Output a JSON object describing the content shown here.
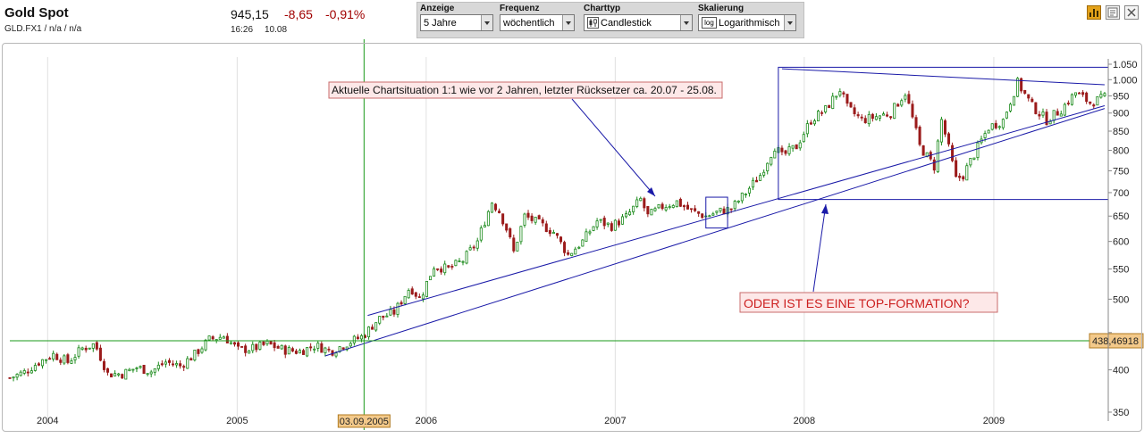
{
  "header": {
    "title": "Gold Spot",
    "subtitle": "GLD.FX1 / n/a / n/a",
    "price": "945,15",
    "change": "-8,65",
    "change_pct": "-0,91%",
    "time": "16:26",
    "date": "10.08",
    "change_color": "#a00000"
  },
  "toolbar": {
    "anzeige": {
      "label": "Anzeige",
      "value": "5 Jahre"
    },
    "frequenz": {
      "label": "Frequenz",
      "value": "wöchentlich"
    },
    "charttyp": {
      "label": "Charttyp",
      "value": "Candlestick"
    },
    "skalierung": {
      "label": "Skalierung",
      "value": "Logarithmisch",
      "icon_text": "log"
    }
  },
  "top_icons": [
    "bar-chart-icon",
    "news-icon",
    "close-icon"
  ],
  "chart_data": {
    "type": "candlestick",
    "frequency": "weekly",
    "scale": "log",
    "ylim": [
      350,
      1050
    ],
    "yticks": [
      350,
      400,
      450,
      500,
      550,
      600,
      650,
      700,
      750,
      800,
      850,
      900,
      950,
      1000,
      1050
    ],
    "ytick_labels": [
      "350",
      "400",
      "",
      "500",
      "550",
      "600",
      "650",
      "700",
      "750",
      "800",
      "850",
      "900",
      "950",
      "1.000",
      "1.050"
    ],
    "xlim": [
      "2003-10-20",
      "2009-08-10"
    ],
    "xticks": [
      {
        "date": "2004-01-01",
        "label": "2004"
      },
      {
        "date": "2005-01-01",
        "label": "2005"
      },
      {
        "date": "2006-01-01",
        "label": "2006"
      },
      {
        "date": "2007-01-01",
        "label": "2007"
      },
      {
        "date": "2008-01-01",
        "label": "2008"
      },
      {
        "date": "2009-01-01",
        "label": "2009"
      }
    ],
    "up_color": "#1a8a1a",
    "down_color": "#9b1b1b",
    "closes": [
      {
        "date": "2003-10-20",
        "close": 390
      },
      {
        "date": "2003-11-17",
        "close": 397
      },
      {
        "date": "2003-12-15",
        "close": 410
      },
      {
        "date": "2004-01-12",
        "close": 420
      },
      {
        "date": "2004-02-09",
        "close": 410
      },
      {
        "date": "2004-03-08",
        "close": 428
      },
      {
        "date": "2004-04-01",
        "close": 434
      },
      {
        "date": "2004-04-26",
        "close": 395
      },
      {
        "date": "2004-05-24",
        "close": 395
      },
      {
        "date": "2004-06-21",
        "close": 403
      },
      {
        "date": "2004-07-19",
        "close": 398
      },
      {
        "date": "2004-08-16",
        "close": 410
      },
      {
        "date": "2004-09-13",
        "close": 405
      },
      {
        "date": "2004-10-11",
        "close": 420
      },
      {
        "date": "2004-11-08",
        "close": 440
      },
      {
        "date": "2004-12-06",
        "close": 445
      },
      {
        "date": "2005-01-03",
        "close": 426
      },
      {
        "date": "2005-02-01",
        "close": 428
      },
      {
        "date": "2005-03-01",
        "close": 434
      },
      {
        "date": "2005-04-01",
        "close": 426
      },
      {
        "date": "2005-05-01",
        "close": 424
      },
      {
        "date": "2005-06-01",
        "close": 432
      },
      {
        "date": "2005-07-01",
        "close": 424
      },
      {
        "date": "2005-08-01",
        "close": 435
      },
      {
        "date": "2005-09-01",
        "close": 445
      },
      {
        "date": "2005-10-01",
        "close": 470
      },
      {
        "date": "2005-11-01",
        "close": 480
      },
      {
        "date": "2005-12-01",
        "close": 520
      },
      {
        "date": "2005-12-20",
        "close": 500
      },
      {
        "date": "2006-01-16",
        "close": 555
      },
      {
        "date": "2006-02-13",
        "close": 550
      },
      {
        "date": "2006-03-13",
        "close": 565
      },
      {
        "date": "2006-04-10",
        "close": 600
      },
      {
        "date": "2006-05-08",
        "close": 680
      },
      {
        "date": "2006-05-22",
        "close": 660
      },
      {
        "date": "2006-06-05",
        "close": 625
      },
      {
        "date": "2006-06-19",
        "close": 580
      },
      {
        "date": "2006-07-10",
        "close": 650
      },
      {
        "date": "2006-08-07",
        "close": 635
      },
      {
        "date": "2006-09-04",
        "close": 618
      },
      {
        "date": "2006-10-02",
        "close": 575
      },
      {
        "date": "2006-10-30",
        "close": 600
      },
      {
        "date": "2006-11-27",
        "close": 640
      },
      {
        "date": "2006-12-25",
        "close": 630
      },
      {
        "date": "2007-01-22",
        "close": 648
      },
      {
        "date": "2007-02-19",
        "close": 685
      },
      {
        "date": "2007-03-05",
        "close": 650
      },
      {
        "date": "2007-04-02",
        "close": 670
      },
      {
        "date": "2007-04-30",
        "close": 680
      },
      {
        "date": "2007-05-28",
        "close": 660
      },
      {
        "date": "2007-06-25",
        "close": 650
      },
      {
        "date": "2007-07-23",
        "close": 660
      },
      {
        "date": "2007-08-13",
        "close": 665
      },
      {
        "date": "2007-09-10",
        "close": 700
      },
      {
        "date": "2007-10-08",
        "close": 740
      },
      {
        "date": "2007-11-05",
        "close": 810
      },
      {
        "date": "2007-11-19",
        "close": 785
      },
      {
        "date": "2007-12-17",
        "close": 810
      },
      {
        "date": "2008-01-14",
        "close": 880
      },
      {
        "date": "2008-02-11",
        "close": 910
      },
      {
        "date": "2008-03-10",
        "close": 970
      },
      {
        "date": "2008-03-24",
        "close": 915
      },
      {
        "date": "2008-04-21",
        "close": 880
      },
      {
        "date": "2008-05-19",
        "close": 890
      },
      {
        "date": "2008-06-16",
        "close": 900
      },
      {
        "date": "2008-07-14",
        "close": 960
      },
      {
        "date": "2008-08-11",
        "close": 810
      },
      {
        "date": "2008-09-08",
        "close": 760
      },
      {
        "date": "2008-09-22",
        "close": 880
      },
      {
        "date": "2008-10-20",
        "close": 730
      },
      {
        "date": "2008-11-03",
        "close": 740
      },
      {
        "date": "2008-11-24",
        "close": 790
      },
      {
        "date": "2008-12-22",
        "close": 860
      },
      {
        "date": "2009-01-19",
        "close": 880
      },
      {
        "date": "2009-02-16",
        "close": 990
      },
      {
        "date": "2009-03-16",
        "close": 920
      },
      {
        "date": "2009-04-13",
        "close": 880
      },
      {
        "date": "2009-05-11",
        "close": 910
      },
      {
        "date": "2009-06-08",
        "close": 960
      },
      {
        "date": "2009-07-06",
        "close": 930
      },
      {
        "date": "2009-08-03",
        "close": 945
      }
    ],
    "crosshair": {
      "x_label": "03.09.2005",
      "y_label": "438,46918",
      "x_date": "2005-09-03",
      "y_value": 438.46918
    },
    "annotations": [
      {
        "text": "Aktuelle Chartsituation 1:1 wie vor 2 Jahren, letzter Rücksetzer ca. 20.07 - 25.08."
      },
      {
        "text": "ODER IST ES EINE TOP-FORMATION?"
      }
    ],
    "drawings": {
      "trendlines": [
        {
          "from": {
            "date": "2005-09-10",
            "value": 475
          },
          "to": {
            "date": "2009-08-03",
            "value": 921
          }
        },
        {
          "from": {
            "date": "2005-06-20",
            "value": 418
          },
          "to": {
            "date": "2009-08-03",
            "value": 913
          }
        },
        {
          "from": {
            "date": "2007-11-19",
            "value": 1035
          },
          "to": {
            "date": "2009-08-03",
            "value": 984
          }
        }
      ],
      "boxes": [
        {
          "from": {
            "date": "2007-06-25",
            "value": 690
          },
          "to": {
            "date": "2007-08-06",
            "value": 626
          }
        },
        {
          "from": {
            "date": "2007-11-12",
            "value": 1040
          },
          "to": {
            "date": "2009-08-10",
            "value": 685
          }
        }
      ]
    }
  }
}
